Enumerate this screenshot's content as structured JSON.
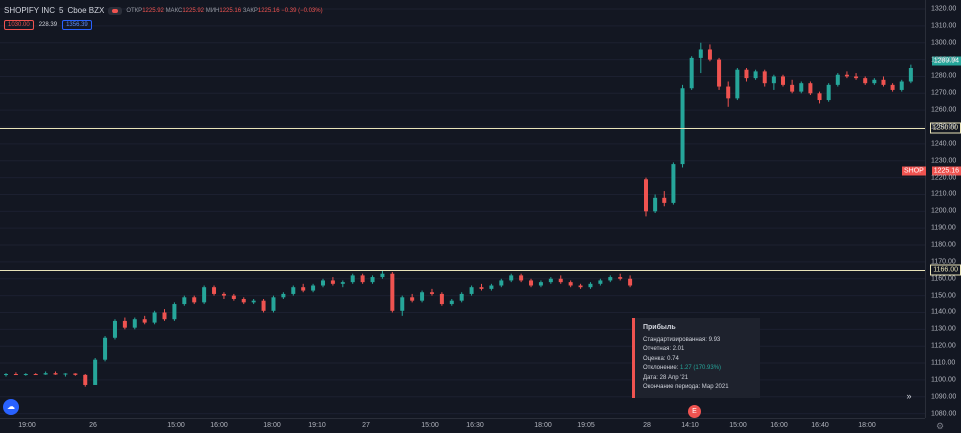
{
  "legend": {
    "symbol": "SHOPIFY INC",
    "interval": "5",
    "exchange": "Cboe BZX",
    "open_label": "ОТКР",
    "open": "1225.92",
    "high_label": "МАКС",
    "high": "1225.92",
    "low_label": "МИН",
    "low": "1225.16",
    "close_label": "ЗАКР",
    "close": "1225.16",
    "change": "−0.39 (−0.03%)"
  },
  "indicators": {
    "left": "1030.00",
    "mid": "228.39",
    "right": "1356.39"
  },
  "price_axis": {
    "ticks": [
      "1320.00",
      "1310.00",
      "1300.00",
      "1290.00",
      "1280.00",
      "1270.00",
      "1260.00",
      "1250.00",
      "1240.00",
      "1230.00",
      "1220.00",
      "1210.00",
      "1200.00",
      "1190.00",
      "1180.00",
      "1170.00",
      "1160.00",
      "1150.00",
      "1140.00",
      "1130.00",
      "1120.00",
      "1110.00",
      "1100.00",
      "1090.00",
      "1080.00"
    ],
    "last_price": "1289.94",
    "symbol_badge": "SHOP",
    "symbol_price": "1225.16",
    "level_1250": "1250.00",
    "level_1166": "1166.00"
  },
  "time_axis": {
    "labels": [
      "19:00",
      "26",
      "15:00",
      "16:00",
      "18:00",
      "19:10",
      "27",
      "15:00",
      "16:30",
      "18:00",
      "19:05",
      "28",
      "14:10",
      "15:00",
      "16:00",
      "16:40",
      "18:00"
    ]
  },
  "earnings": {
    "title": "Прибыль",
    "line1": "Стандартизированная: 9.93",
    "line2": "Отчетная: 2.01",
    "line3": "Оценка: 0.74",
    "line4_label": "Отклонение:",
    "line4_value": "1.27 (170.93%)",
    "line5": "Дата: 28 Апр '21",
    "line6": "Окончание периода: Мар 2021",
    "badge": "E"
  },
  "icons": {
    "cloud": "cloud-icon",
    "scroll": "double-chevron-right-icon",
    "settings": "gear-icon",
    "eye": "eye-icon"
  },
  "colors": {
    "up": "#26a69a",
    "down": "#ef5350",
    "level_line": "#e8e3b8",
    "background": "#131722"
  },
  "chart_data": {
    "type": "candlestick",
    "ylim": [
      1080,
      1320
    ],
    "levels": [
      1250,
      1166
    ],
    "candles": [
      [
        1103,
        1104,
        1102,
        1103.5
      ],
      [
        1103.5,
        1104.5,
        1103,
        1103
      ],
      [
        1103,
        1104,
        1102.5,
        1103.5
      ],
      [
        1103.5,
        1104,
        1103,
        1103.2
      ],
      [
        1103.2,
        1105,
        1103,
        1104
      ],
      [
        1104,
        1105,
        1103,
        1103.2
      ],
      [
        1103.2,
        1104,
        1102,
        1103.8
      ],
      [
        1103.8,
        1104,
        1102.5,
        1103
      ],
      [
        1103,
        1103.5,
        1096,
        1097
      ],
      [
        1097,
        1113,
        1097,
        1112
      ],
      [
        1112,
        1126,
        1111,
        1125
      ],
      [
        1125,
        1136,
        1124,
        1135
      ],
      [
        1135,
        1137,
        1130,
        1131
      ],
      [
        1131,
        1137,
        1130,
        1136
      ],
      [
        1136,
        1138,
        1133,
        1134
      ],
      [
        1134,
        1141,
        1133,
        1140
      ],
      [
        1140,
        1142,
        1135,
        1136
      ],
      [
        1136,
        1146,
        1135,
        1145
      ],
      [
        1145,
        1150,
        1144,
        1149
      ],
      [
        1149,
        1150,
        1145,
        1146
      ],
      [
        1146,
        1156,
        1145,
        1155
      ],
      [
        1155,
        1156,
        1150,
        1151
      ],
      [
        1151,
        1152,
        1148,
        1150
      ],
      [
        1150,
        1151,
        1147,
        1148
      ],
      [
        1148,
        1149,
        1145,
        1146
      ],
      [
        1146,
        1148,
        1145,
        1147
      ],
      [
        1147,
        1148,
        1140,
        1141
      ],
      [
        1141,
        1150,
        1140,
        1149
      ],
      [
        1149,
        1152,
        1148,
        1151
      ],
      [
        1151,
        1156,
        1150,
        1155
      ],
      [
        1155,
        1157,
        1152,
        1153
      ],
      [
        1153,
        1157,
        1152,
        1156
      ],
      [
        1156,
        1160,
        1155,
        1159
      ],
      [
        1159,
        1161,
        1156,
        1157
      ],
      [
        1157,
        1159,
        1155,
        1158
      ],
      [
        1158,
        1163,
        1157,
        1162
      ],
      [
        1162,
        1163,
        1157,
        1158
      ],
      [
        1158,
        1162,
        1157,
        1161
      ],
      [
        1161,
        1165,
        1160,
        1163
      ],
      [
        1163,
        1164,
        1140,
        1141
      ],
      [
        1141,
        1150,
        1138,
        1149
      ],
      [
        1149,
        1151,
        1146,
        1147
      ],
      [
        1147,
        1153,
        1146,
        1152
      ],
      [
        1152,
        1154,
        1150,
        1151
      ],
      [
        1151,
        1152,
        1144,
        1145
      ],
      [
        1145,
        1148,
        1144,
        1147
      ],
      [
        1147,
        1152,
        1146,
        1151
      ],
      [
        1151,
        1156,
        1150,
        1155
      ],
      [
        1155,
        1157,
        1153,
        1154
      ],
      [
        1154,
        1157,
        1153,
        1156
      ],
      [
        1156,
        1160,
        1155,
        1159
      ],
      [
        1159,
        1163,
        1158,
        1162
      ],
      [
        1162,
        1163,
        1158,
        1159
      ],
      [
        1159,
        1160,
        1155,
        1156
      ],
      [
        1156,
        1159,
        1155,
        1158
      ],
      [
        1158,
        1161,
        1157,
        1160
      ],
      [
        1160,
        1162,
        1157,
        1158
      ],
      [
        1158,
        1159,
        1155,
        1156
      ],
      [
        1156,
        1157,
        1154,
        1155
      ],
      [
        1155,
        1158,
        1154,
        1157
      ],
      [
        1157,
        1160,
        1156,
        1159
      ],
      [
        1159,
        1162,
        1158,
        1161
      ],
      [
        1161,
        1163,
        1159,
        1160
      ],
      [
        1160,
        1162,
        1155,
        1156
      ],
      [
        1219,
        1220,
        1197,
        1200
      ],
      [
        1200,
        1210,
        1199,
        1208
      ],
      [
        1208,
        1212,
        1203,
        1205
      ],
      [
        1205,
        1229,
        1204,
        1228
      ],
      [
        1228,
        1275,
        1226,
        1273
      ],
      [
        1273,
        1292,
        1272,
        1291
      ],
      [
        1291,
        1300,
        1282,
        1296
      ],
      [
        1296,
        1299,
        1289,
        1290
      ],
      [
        1290,
        1291,
        1272,
        1274
      ],
      [
        1274,
        1277,
        1262,
        1267
      ],
      [
        1267,
        1285,
        1266,
        1284
      ],
      [
        1284,
        1285,
        1277,
        1279
      ],
      [
        1279,
        1284,
        1278,
        1283
      ],
      [
        1283,
        1284,
        1274,
        1276
      ],
      [
        1276,
        1281,
        1272,
        1280
      ],
      [
        1280,
        1281,
        1274,
        1275
      ],
      [
        1275,
        1278,
        1270,
        1271
      ],
      [
        1271,
        1277,
        1270,
        1276
      ],
      [
        1276,
        1277,
        1269,
        1270
      ],
      [
        1270,
        1271,
        1264,
        1266
      ],
      [
        1266,
        1276,
        1265,
        1275
      ],
      [
        1275,
        1282,
        1274,
        1281
      ],
      [
        1281,
        1283,
        1279,
        1280
      ],
      [
        1280,
        1282,
        1278,
        1279
      ],
      [
        1279,
        1280,
        1275,
        1276
      ],
      [
        1276,
        1279,
        1275,
        1278
      ],
      [
        1278,
        1280,
        1274,
        1275
      ],
      [
        1275,
        1276,
        1271,
        1272
      ],
      [
        1272,
        1278,
        1271,
        1277
      ],
      [
        1277,
        1287,
        1276,
        1285
      ]
    ]
  }
}
